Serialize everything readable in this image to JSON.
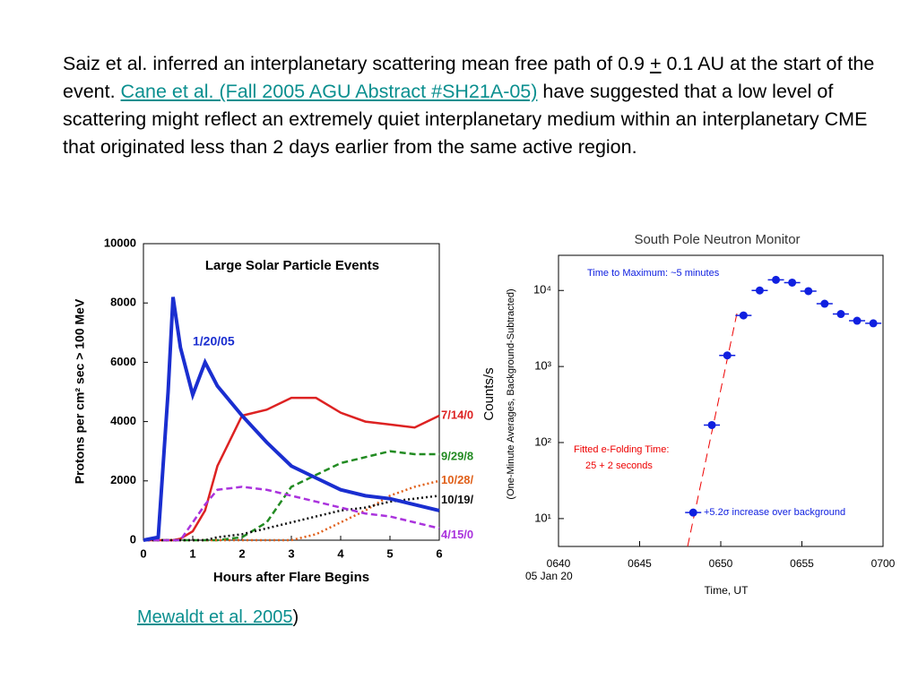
{
  "paragraph": {
    "parts": [
      "Saiz et al. inferred an interplanetary scattering mean free path of 0.9 ",
      "+",
      " 0.1 AU at the start of the event.  ",
      "Cane et al. (Fall 2005 AGU Abstract #SH21A-05)",
      " have suggested that a low level of scattering might reflect an extremely quiet interplanetary medium within an interplanetary CME that originated less than 2 days earlier from the same active region."
    ]
  },
  "caption": {
    "link": "Mewaldt et al. 2005",
    "tail": ")"
  },
  "chart_data": [
    {
      "type": "line",
      "title": "Large Solar Particle Events",
      "xlabel": "Hours after Flare Begins",
      "ylabel": "Protons per cm² sec > 100 MeV",
      "annotation": "1/20/05",
      "x": [
        0,
        0.3,
        0.5,
        0.6,
        0.75,
        1,
        1.25,
        1.5,
        2,
        2.5,
        3,
        3.5,
        4,
        4.5,
        5,
        5.5,
        6
      ],
      "series": [
        {
          "name": "7/14/0",
          "color": "#dd2222",
          "dash": "solid",
          "values": [
            0,
            0,
            0,
            0,
            50,
            300,
            1000,
            2500,
            4200,
            4400,
            4800,
            4800,
            4300,
            4000,
            3900,
            3800,
            4200
          ]
        },
        {
          "name": "9/29/8",
          "color": "#228b22",
          "dash": "dashed",
          "values": [
            0,
            0,
            0,
            0,
            0,
            0,
            0,
            0,
            100,
            600,
            1800,
            2200,
            2600,
            2800,
            3000,
            2900,
            2900
          ]
        },
        {
          "name": "10/28/",
          "color": "#e0601a",
          "dash": "dotted",
          "values": [
            0,
            0,
            0,
            0,
            0,
            0,
            0,
            0,
            0,
            0,
            0,
            200,
            600,
            1000,
            1500,
            1800,
            2000
          ]
        },
        {
          "name": "10/19/",
          "color": "#111111",
          "dash": "dotted",
          "values": [
            0,
            0,
            0,
            0,
            0,
            0,
            0,
            100,
            200,
            400,
            600,
            800,
            1000,
            1100,
            1300,
            1400,
            1500
          ]
        },
        {
          "name": "4/15/0",
          "color": "#aa33dd",
          "dash": "dashed",
          "values": [
            0,
            0,
            0,
            0,
            0,
            600,
            1200,
            1700,
            1800,
            1700,
            1500,
            1300,
            1100,
            900,
            800,
            600,
            400
          ]
        },
        {
          "name": "1/20/05",
          "color": "#1a2ed0",
          "dash": "solid",
          "values": [
            0,
            100,
            5000,
            8200,
            6500,
            4900,
            6000,
            5200,
            4200,
            3300,
            2500,
            2100,
            1700,
            1500,
            1400,
            1200,
            1000
          ]
        }
      ],
      "xlim": [
        0,
        6
      ],
      "xticks": [
        0,
        1,
        2,
        3,
        4,
        5,
        6
      ],
      "ylim": [
        0,
        10000
      ],
      "yticks": [
        0,
        2000,
        4000,
        6000,
        8000,
        10000
      ]
    },
    {
      "type": "scatter",
      "title": "South Pole Neutron Monitor",
      "xlabel": "Time, UT",
      "x_sublabel": "05 Jan 20",
      "ylabel": "Counts/s",
      "ylabel2": "(One-Minute Averages, Background-Subtracted)",
      "annotations": [
        "Time to Maximum: ~5 minutes",
        "Fitted e-Folding Time:",
        "25 + 2 seconds",
        "+5.2σ  increase over background"
      ],
      "color": "#1020e0",
      "log_y": true,
      "x": [
        48.3,
        49.45,
        50.4,
        51.4,
        52.4,
        53.4,
        54.4,
        55.4,
        56.4,
        57.4,
        58.4,
        59.4
      ],
      "values": [
        12,
        170,
        1400,
        4700,
        10000,
        13800,
        12700,
        9800,
        6700,
        4900,
        4000,
        3700
      ],
      "xlim": [
        40,
        60
      ],
      "xticks": [
        {
          "value": 40,
          "label": "0640"
        },
        {
          "value": 45,
          "label": "0645"
        },
        {
          "value": 50,
          "label": "0650"
        },
        {
          "value": 55,
          "label": "0655"
        },
        {
          "value": 60,
          "label": "0700"
        }
      ],
      "ylim": [
        4.3,
        29000
      ],
      "yticks": [
        {
          "value": 10,
          "label": "10¹"
        },
        {
          "value": 100,
          "label": "10²"
        },
        {
          "value": 1000,
          "label": "10³"
        },
        {
          "value": 10000,
          "label": "10⁴"
        }
      ]
    }
  ]
}
